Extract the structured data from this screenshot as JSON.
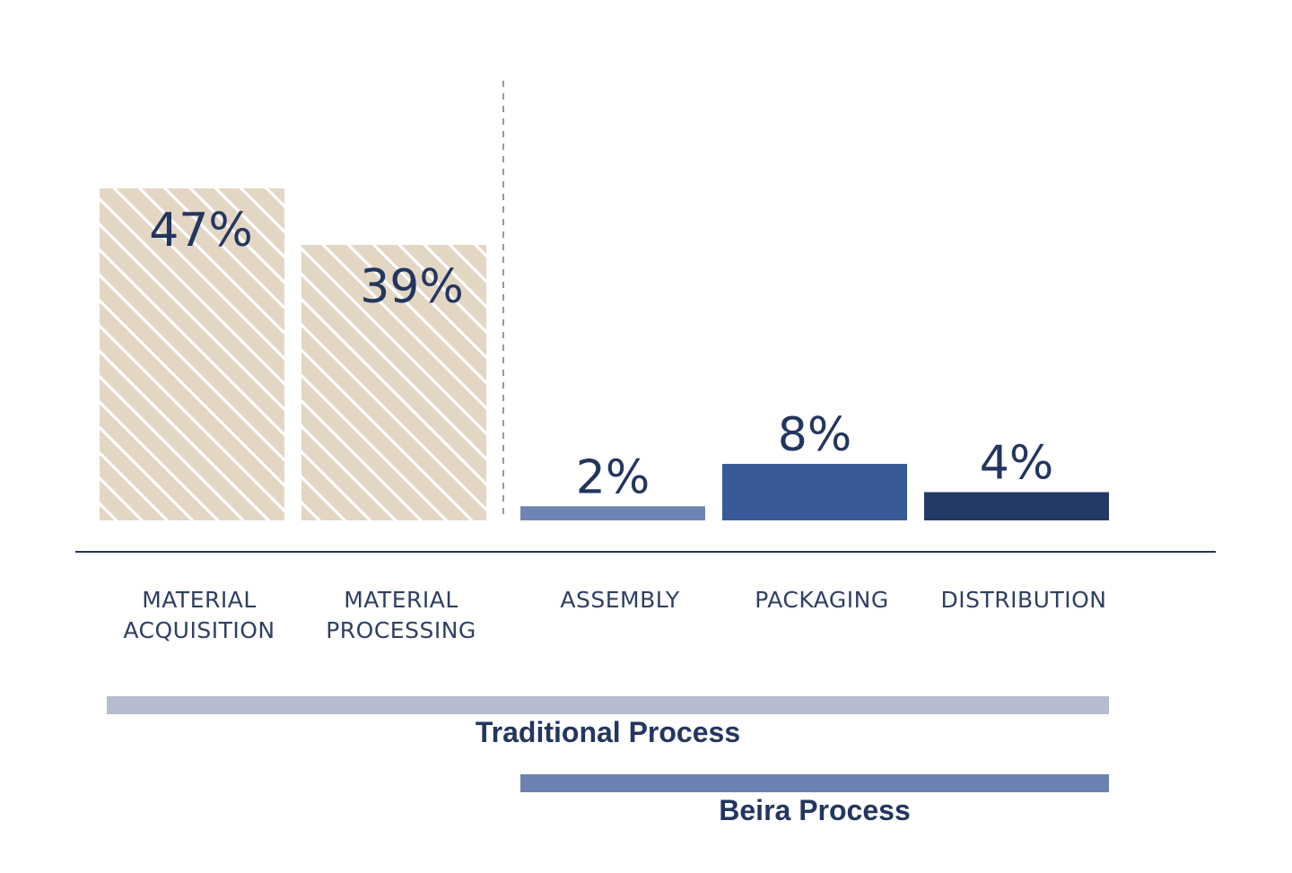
{
  "chart_data": {
    "type": "bar",
    "categories": [
      [
        "MATERIAL",
        "ACQUISITION"
      ],
      [
        "MATERIAL",
        "PROCESSING"
      ],
      [
        "ASSEMBLY"
      ],
      [
        "PACKAGING"
      ],
      [
        "DISTRIBUTION"
      ]
    ],
    "values": [
      47,
      39,
      2,
      8,
      4
    ],
    "value_labels": [
      "47%",
      "39%",
      "2%",
      "8%",
      "4%"
    ],
    "bar_styles": [
      "hatched",
      "hatched",
      "solid",
      "solid",
      "solid"
    ],
    "colors": {
      "hatch_fill": "#e3d6c3",
      "hatch_stripe": "#ffffff",
      "assembly": "#6f84b3",
      "packaging": "#395a98",
      "distribution": "#243966",
      "axis": "#23365f",
      "divider": "#9a9a9a",
      "text": "#23365f"
    },
    "ylim": [
      0,
      60
    ],
    "grid": false,
    "title": "",
    "xlabel": "",
    "ylabel": "",
    "ranges": [
      {
        "label": "Traditional Process",
        "from": 0,
        "to": 4,
        "color": "#b4bccd"
      },
      {
        "label": "Beira Process",
        "from": 2,
        "to": 4,
        "color": "#6b81b0"
      }
    ]
  }
}
